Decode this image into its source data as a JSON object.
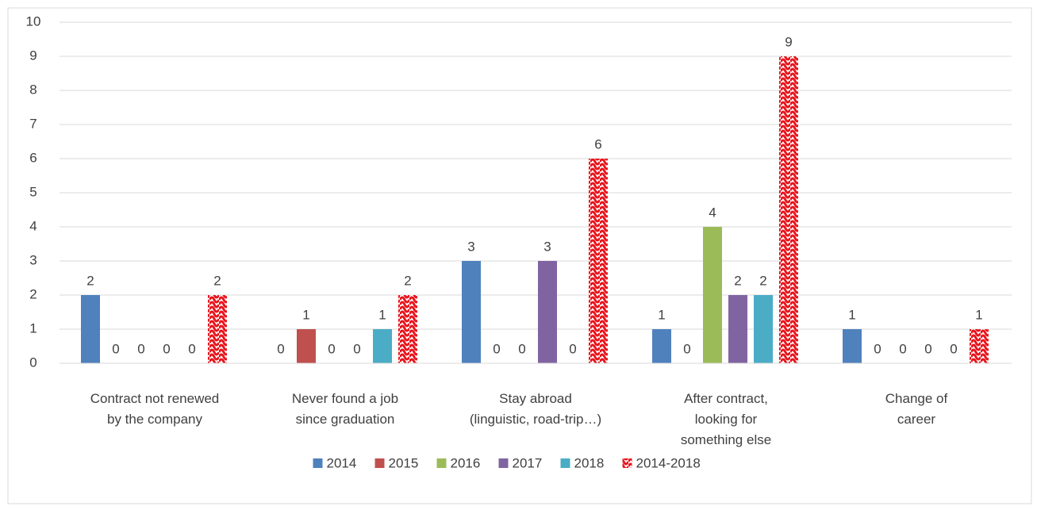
{
  "chart_data": {
    "type": "bar",
    "categories": [
      "Contract not renewed\nby the company",
      "Never found a job\nsince graduation",
      "Stay abroad\n(linguistic, road-trip…)",
      "After contract,\nlooking for\nsomething else",
      "Change of\ncareer"
    ],
    "series": [
      {
        "name": "2014",
        "color": "#4f81bd",
        "values": [
          2,
          0,
          3,
          1,
          1
        ]
      },
      {
        "name": "2015",
        "color": "#c0504d",
        "values": [
          0,
          1,
          0,
          0,
          0
        ]
      },
      {
        "name": "2016",
        "color": "#9bbb59",
        "values": [
          0,
          0,
          0,
          4,
          0
        ]
      },
      {
        "name": "2017",
        "color": "#8064a2",
        "values": [
          0,
          0,
          3,
          2,
          0
        ]
      },
      {
        "name": "2018",
        "color": "#4bacc6",
        "values": [
          0,
          1,
          0,
          2,
          0
        ]
      },
      {
        "name": "2014-2018",
        "color": "#e8141c",
        "pattern": true,
        "values": [
          2,
          2,
          6,
          9,
          1
        ]
      }
    ],
    "ylim": [
      0,
      10
    ],
    "yticks": [
      0,
      1,
      2,
      3,
      4,
      5,
      6,
      7,
      8,
      9,
      10
    ],
    "grid": true,
    "legend": "bottom"
  }
}
